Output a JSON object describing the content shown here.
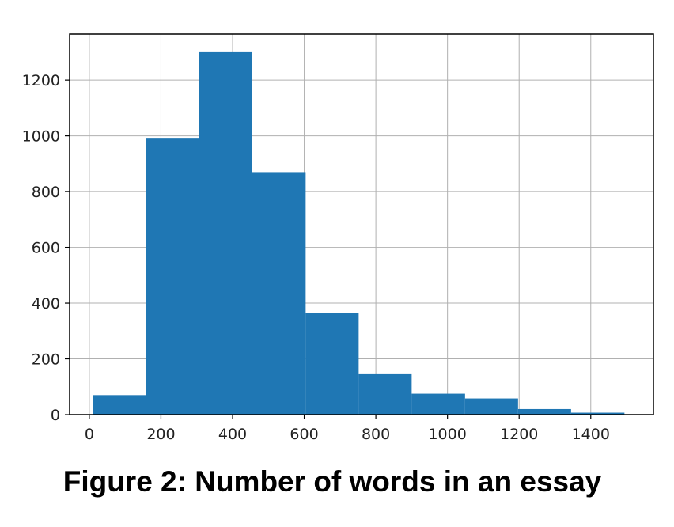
{
  "caption": "Figure 2: Number of words in an essay",
  "chart_data": {
    "type": "bar",
    "title": "",
    "xlabel": "",
    "ylabel": "",
    "xlim": [
      -55,
      1575
    ],
    "ylim": [
      0,
      1365
    ],
    "x_ticks": [
      0,
      200,
      400,
      600,
      800,
      1000,
      1200,
      1400
    ],
    "y_ticks": [
      0,
      200,
      400,
      600,
      800,
      1000,
      1200
    ],
    "grid": true,
    "bar_color": "#1f77b4",
    "bins": [
      {
        "x0": 10,
        "x1": 159,
        "value": 70
      },
      {
        "x0": 159,
        "x1": 307,
        "value": 990
      },
      {
        "x0": 307,
        "x1": 455,
        "value": 1300
      },
      {
        "x0": 455,
        "x1": 604,
        "value": 870
      },
      {
        "x0": 604,
        "x1": 752,
        "value": 365
      },
      {
        "x0": 752,
        "x1": 900,
        "value": 145
      },
      {
        "x0": 900,
        "x1": 1049,
        "value": 75
      },
      {
        "x0": 1049,
        "x1": 1197,
        "value": 58
      },
      {
        "x0": 1197,
        "x1": 1345,
        "value": 20
      },
      {
        "x0": 1345,
        "x1": 1494,
        "value": 7
      }
    ]
  }
}
